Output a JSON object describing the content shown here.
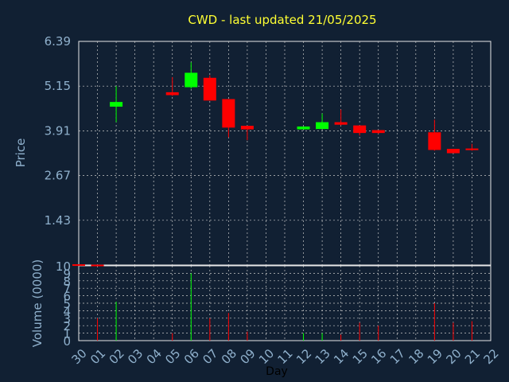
{
  "chart_data": [
    {
      "type": "candlestick",
      "title": "CWD - last updated 21/05/2025",
      "ylabel": "Price",
      "ylim": [
        0.19,
        6.39
      ],
      "yticks": [
        "6.39",
        "5.15",
        "3.91",
        "2.67",
        "1.43"
      ],
      "grid": true,
      "up_color": "#00ff00",
      "down_color": "#ff0000",
      "x": [
        "30",
        "01",
        "02",
        "03",
        "04",
        "05",
        "06",
        "07",
        "08",
        "09",
        "10",
        "11",
        "12",
        "13",
        "14",
        "15",
        "16",
        "17",
        "18",
        "19",
        "20",
        "21",
        "22"
      ],
      "candles": [
        {
          "day": "30",
          "open": 0.21,
          "high": 0.21,
          "low": 0.19,
          "close": 0.19
        },
        {
          "day": "01",
          "open": 0.2,
          "high": 0.2,
          "low": 0.19,
          "close": 0.19
        },
        {
          "day": "02",
          "open": 4.58,
          "high": 5.15,
          "low": 4.15,
          "close": 4.71
        },
        {
          "day": "05",
          "open": 4.98,
          "high": 5.4,
          "low": 4.88,
          "close": 4.9
        },
        {
          "day": "06",
          "open": 5.12,
          "high": 5.81,
          "low": 5.08,
          "close": 5.52
        },
        {
          "day": "07",
          "open": 5.38,
          "high": 5.45,
          "low": 4.75,
          "close": 4.75
        },
        {
          "day": "08",
          "open": 4.79,
          "high": 4.79,
          "low": 3.73,
          "close": 4.0
        },
        {
          "day": "09",
          "open": 4.05,
          "high": 4.05,
          "low": 3.65,
          "close": 3.95
        },
        {
          "day": "12",
          "open": 3.95,
          "high": 4.03,
          "low": 3.95,
          "close": 4.03
        },
        {
          "day": "13",
          "open": 3.96,
          "high": 4.39,
          "low": 3.96,
          "close": 4.15
        },
        {
          "day": "14",
          "open": 4.15,
          "high": 4.5,
          "low": 4.06,
          "close": 4.08
        },
        {
          "day": "15",
          "open": 4.06,
          "high": 4.06,
          "low": 3.78,
          "close": 3.85
        },
        {
          "day": "16",
          "open": 3.93,
          "high": 3.93,
          "low": 3.83,
          "close": 3.85
        },
        {
          "day": "19",
          "open": 3.87,
          "high": 4.22,
          "low": 3.36,
          "close": 3.38
        },
        {
          "day": "20",
          "open": 3.41,
          "high": 3.41,
          "low": 3.29,
          "close": 3.29
        },
        {
          "day": "21",
          "open": 3.42,
          "high": 3.55,
          "low": 3.36,
          "close": 3.38
        }
      ]
    },
    {
      "type": "bar",
      "ylabel": "Volume (0000)",
      "xlabel": "Day",
      "ylim": [
        0,
        10
      ],
      "yticks": [
        "10",
        "9",
        "8",
        "7",
        "6",
        "5",
        "4",
        "3",
        "2",
        "1",
        "0"
      ],
      "grid": true,
      "x": [
        "30",
        "01",
        "02",
        "03",
        "04",
        "05",
        "06",
        "07",
        "08",
        "09",
        "10",
        "11",
        "12",
        "13",
        "14",
        "15",
        "16",
        "17",
        "18",
        "19",
        "20",
        "21",
        "22"
      ],
      "bars": [
        {
          "day": "01",
          "value": 3.0,
          "color": "#ff0000"
        },
        {
          "day": "02",
          "value": 5.2,
          "color": "#00ff00"
        },
        {
          "day": "05",
          "value": 1.0,
          "color": "#ff0000"
        },
        {
          "day": "06",
          "value": 9.0,
          "color": "#00ff00"
        },
        {
          "day": "07",
          "value": 3.0,
          "color": "#ff0000"
        },
        {
          "day": "08",
          "value": 3.7,
          "color": "#ff0000"
        },
        {
          "day": "09",
          "value": 1.2,
          "color": "#ff0000"
        },
        {
          "day": "12",
          "value": 1.0,
          "color": "#00ff00"
        },
        {
          "day": "13",
          "value": 1.0,
          "color": "#00ff00"
        },
        {
          "day": "14",
          "value": 0.8,
          "color": "#ff0000"
        },
        {
          "day": "15",
          "value": 2.4,
          "color": "#ff0000"
        },
        {
          "day": "16",
          "value": 2.0,
          "color": "#ff0000"
        },
        {
          "day": "19",
          "value": 5.0,
          "color": "#ff0000"
        },
        {
          "day": "20",
          "value": 2.4,
          "color": "#ff0000"
        },
        {
          "day": "21",
          "value": 2.6,
          "color": "#ff0000"
        }
      ]
    }
  ]
}
